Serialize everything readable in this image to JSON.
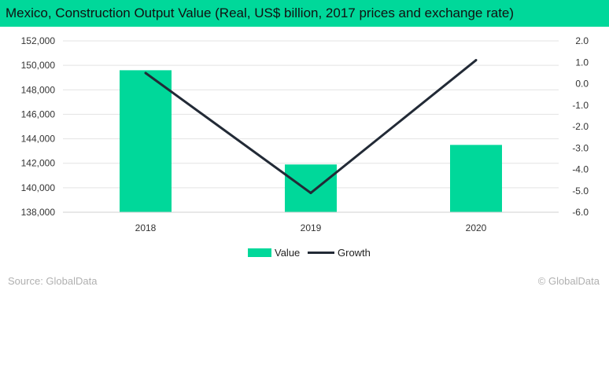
{
  "title": "Mexico, Construction Output Value (Real, US$ billion, 2017 prices and exchange rate)",
  "colors": {
    "accent": "#00d89a",
    "line": "#222a36"
  },
  "chart_data": {
    "type": "bar",
    "categories": [
      "2018",
      "2019",
      "2020"
    ],
    "series": [
      {
        "name": "Value",
        "type": "bar",
        "axis": "left",
        "values": [
          149600,
          141900,
          143500
        ]
      },
      {
        "name": "Growth",
        "type": "line",
        "axis": "right",
        "values": [
          0.5,
          -5.1,
          1.1
        ]
      }
    ],
    "y_left": {
      "min": 138000,
      "max": 152000,
      "step": 2000,
      "ticks": [
        "138,000",
        "140,000",
        "142,000",
        "144,000",
        "146,000",
        "148,000",
        "150,000",
        "152,000"
      ]
    },
    "y_right": {
      "min": -6.0,
      "max": 2.0,
      "step": 1.0,
      "ticks": [
        "-6.0",
        "-5.0",
        "-4.0",
        "-3.0",
        "-2.0",
        "-1.0",
        "0.0",
        "1.0",
        "2.0"
      ]
    },
    "grid": true,
    "legend": "bottom"
  },
  "legend": {
    "items": [
      "Value",
      "Growth"
    ]
  },
  "footer": {
    "source": "Source: GlobalData",
    "copyright": "© GlobalData"
  }
}
